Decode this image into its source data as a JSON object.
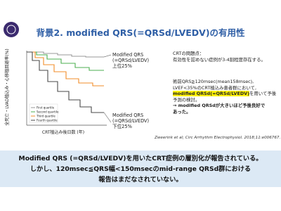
{
  "header": {
    "title": "背景2. modified QRS(=QRSd/LVEDV)の有用性"
  },
  "figure": {
    "y_label": "全死亡・LVAD植込み・心移植回避率(%)",
    "x_label": "CRT植込み後日数 (年)",
    "legend": [
      "First quartile",
      "Second quartile",
      "Third quartile",
      "Fourth quartile"
    ],
    "callout_top": [
      "Modified QRS",
      "(=QRSd/LVEDV)",
      "上位25%"
    ],
    "callout_bottom": [
      "Modified QRS",
      "(=QRSd/LVEDV)",
      "下位25%"
    ]
  },
  "text": {
    "problem": [
      "CRTの問題点：",
      "有効性を認めない症例が3-4割程度存在する。"
    ],
    "method": [
      "術前QRS≧120msec(mean158msec),",
      "LVEF<35%のCRT植込み患者群において,",
      "modified QRSd(=QRSd/LVEDV)",
      "を用いて予後",
      "予測の検討。"
    ],
    "result": [
      "→ modified QRSdが大きいほど予後良好で",
      "あった。"
    ]
  },
  "citation": "Zweerink et al; Circ Arrhythm Electrophysiol. 2018;11:e006767.",
  "conclusion": [
    "Modified QRS (=QRSd/LVEDV)を用いたCRT症例の層別化が報告されている。",
    "しかし、120msec≦QRS幅<150msecのmid-range QRSd群における",
    "報告はまだなされていない。"
  ]
}
